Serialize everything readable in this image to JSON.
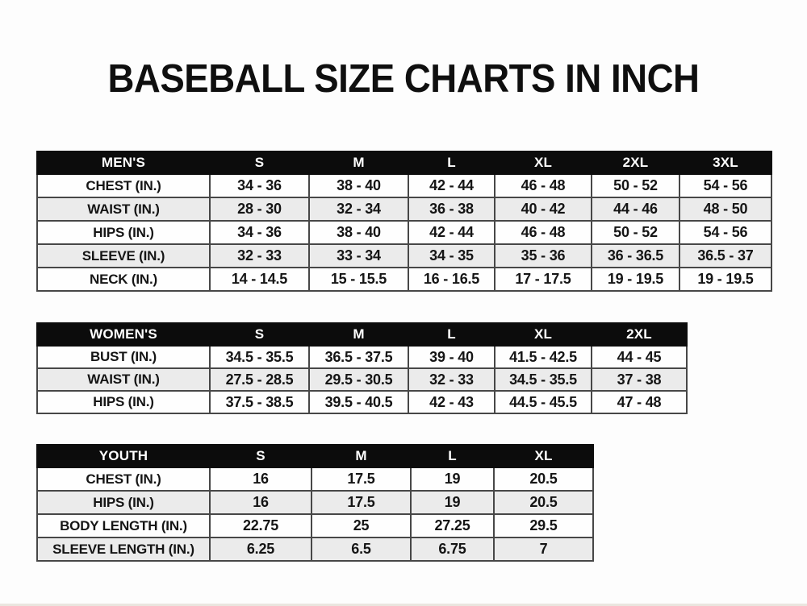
{
  "title": "BASEBALL SIZE CHARTS IN INCH",
  "colors": {
    "header_bg": "#0c0c0c",
    "header_text": "#ffffff",
    "row_alt_bg": "#ebebeb",
    "grid_border": "#474747",
    "text": "#151515",
    "background": "#fdfdfd"
  },
  "chart_data": [
    {
      "type": "table",
      "name": "mens",
      "header": [
        "MEN'S",
        "S",
        "M",
        "L",
        "XL",
        "2XL",
        "3XL"
      ],
      "rows": [
        [
          "CHEST (IN.)",
          "34 - 36",
          "38 - 40",
          "42 - 44",
          "46 - 48",
          "50 - 52",
          "54 - 56"
        ],
        [
          "WAIST (IN.)",
          "28 - 30",
          "32 - 34",
          "36 - 38",
          "40 - 42",
          "44 - 46",
          "48 - 50"
        ],
        [
          "HIPS (IN.)",
          "34 - 36",
          "38 - 40",
          "42 - 44",
          "46 - 48",
          "50 - 52",
          "54 - 56"
        ],
        [
          "SLEEVE (IN.)",
          "32 - 33",
          "33 - 34",
          "34 - 35",
          "35 - 36",
          "36 - 36.5",
          "36.5 - 37"
        ],
        [
          "NECK (IN.)",
          "14 - 14.5",
          "15 - 15.5",
          "16 - 16.5",
          "17 - 17.5",
          "19 - 19.5",
          "19 - 19.5"
        ]
      ]
    },
    {
      "type": "table",
      "name": "womens",
      "header": [
        "WOMEN'S",
        "S",
        "M",
        "L",
        "XL",
        "2XL"
      ],
      "rows": [
        [
          "BUST (IN.)",
          "34.5 - 35.5",
          "36.5 - 37.5",
          "39 - 40",
          "41.5 - 42.5",
          "44 - 45"
        ],
        [
          "WAIST (IN.)",
          "27.5 - 28.5",
          "29.5 - 30.5",
          "32 - 33",
          "34.5 - 35.5",
          "37 - 38"
        ],
        [
          "HIPS (IN.)",
          "37.5 - 38.5",
          "39.5 - 40.5",
          "42 - 43",
          "44.5 - 45.5",
          "47 - 48"
        ]
      ]
    },
    {
      "type": "table",
      "name": "youth",
      "header": [
        "YOUTH",
        "S",
        "M",
        "L",
        "XL"
      ],
      "rows": [
        [
          "CHEST (IN.)",
          "16",
          "17.5",
          "19",
          "20.5"
        ],
        [
          "HIPS (IN.)",
          "16",
          "17.5",
          "19",
          "20.5"
        ],
        [
          "BODY LENGTH (IN.)",
          "22.75",
          "25",
          "27.25",
          "29.5"
        ],
        [
          "SLEEVE LENGTH (IN.)",
          "6.25",
          "6.5",
          "6.75",
          "7"
        ]
      ]
    }
  ]
}
